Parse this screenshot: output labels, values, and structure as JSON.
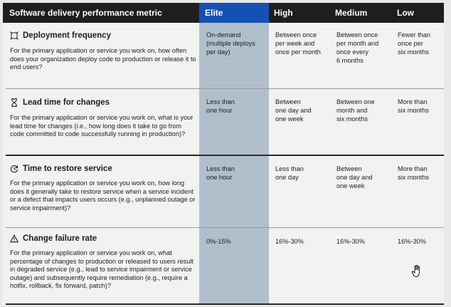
{
  "header": {
    "metric": "Software delivery performance metric",
    "elite": "Elite",
    "high": "High",
    "medium": "Medium",
    "low": "Low"
  },
  "rows": [
    {
      "icon": "deployment-icon",
      "title": "Deployment frequency",
      "description": "For the primary application or service you work on, how often does your organization deploy code to production or release it to end users?",
      "elite": "On-demand\n(multiple deploys\nper day)",
      "high": "Between once\nper week and\nonce per month",
      "medium": "Between once\nper month and\nonce every\n6 months",
      "low": "Fewer than\nonce per\nsix months"
    },
    {
      "icon": "hourglass-icon",
      "title": "Lead time for changes",
      "description": "For the primary application or service you work on, what is your lead time for changes (i.e., how long does it take to go from code committed to code successfully running in production)?",
      "elite": "Less than\none hour",
      "high": "Between\none day and\none week",
      "medium": "Between one\nmonth and\nsix months",
      "low": "More than\nsix months"
    },
    {
      "icon": "restore-icon",
      "title": "Time to restore service",
      "description": "For the primary application or service you work on, how long does it generally take to restore service when a service incident or a defect that impacts users occurs (e.g., unplanned outage or service impairment)?",
      "elite": "Less than\none hour",
      "high": "Less than\none day",
      "medium": "Between\none day and\none week",
      "low": "More than\nsix months"
    },
    {
      "icon": "warning-icon",
      "title": "Change failure rate",
      "description": "For the primary application or service you work on, what percentage of changes to production or released to users result in degraded service (e.g., lead to service impairment or service outage) and subsequently require remediation (e.g., require a hotfix, rollback, fix forward, patch)?",
      "elite": "0%-15%",
      "high": "16%-30%",
      "medium": "16%-30%",
      "low": "16%-30%"
    }
  ],
  "colors": {
    "header_bg": "#1e1e1e",
    "elite_header": "#1551b5",
    "elite_column": "#b1bfcd",
    "page_bg": "#f2f2f0"
  }
}
